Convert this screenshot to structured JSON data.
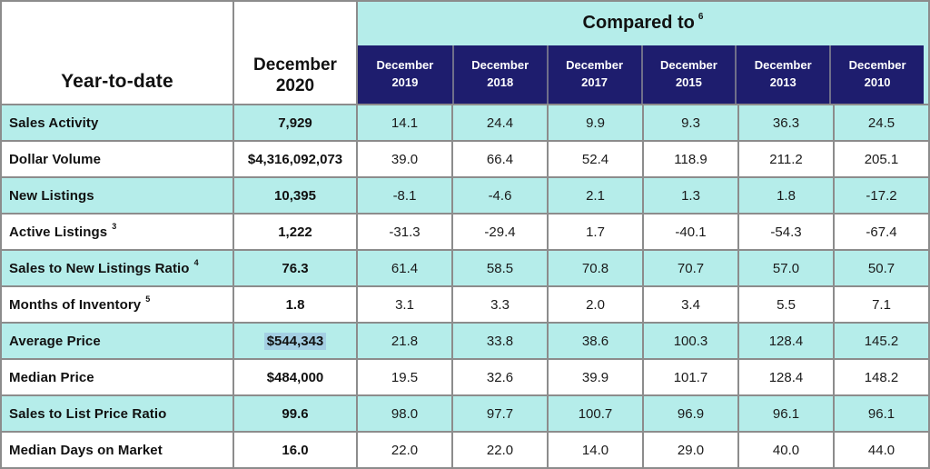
{
  "chart_data": {
    "type": "table",
    "corner_label": "Year-to-date",
    "current_period": "December 2020",
    "compared_to_label": "Compared to",
    "compared_to_footnote": "6",
    "comparison_columns": [
      "December 2019",
      "December 2018",
      "December 2017",
      "December 2015",
      "December 2013",
      "December 2010"
    ],
    "rows": [
      {
        "label": "Sales Activity",
        "footnote": "",
        "value": "7,929",
        "comparisons": [
          "14.1",
          "24.4",
          "9.9",
          "9.3",
          "36.3",
          "24.5"
        ]
      },
      {
        "label": "Dollar Volume",
        "footnote": "",
        "value": "$4,316,092,073",
        "comparisons": [
          "39.0",
          "66.4",
          "52.4",
          "118.9",
          "211.2",
          "205.1"
        ]
      },
      {
        "label": "New Listings",
        "footnote": "",
        "value": "10,395",
        "comparisons": [
          "-8.1",
          "-4.6",
          "2.1",
          "1.3",
          "1.8",
          "-17.2"
        ]
      },
      {
        "label": "Active Listings",
        "footnote": "3",
        "value": "1,222",
        "comparisons": [
          "-31.3",
          "-29.4",
          "1.7",
          "-40.1",
          "-54.3",
          "-67.4"
        ]
      },
      {
        "label": "Sales to New Listings Ratio",
        "footnote": "4",
        "value": "76.3",
        "comparisons": [
          "61.4",
          "58.5",
          "70.8",
          "70.7",
          "57.0",
          "50.7"
        ]
      },
      {
        "label": "Months of Inventory",
        "footnote": "5",
        "value": "1.8",
        "comparisons": [
          "3.1",
          "3.3",
          "2.0",
          "3.4",
          "5.5",
          "7.1"
        ]
      },
      {
        "label": "Average Price",
        "footnote": "",
        "value": "$544,343",
        "comparisons": [
          "21.8",
          "33.8",
          "38.6",
          "100.3",
          "128.4",
          "145.2"
        ]
      },
      {
        "label": "Median Price",
        "footnote": "",
        "value": "$484,000",
        "comparisons": [
          "19.5",
          "32.6",
          "39.9",
          "101.7",
          "128.4",
          "148.2"
        ]
      },
      {
        "label": "Sales to List Price Ratio",
        "footnote": "",
        "value": "99.6",
        "comparisons": [
          "98.0",
          "97.7",
          "100.7",
          "96.9",
          "96.1",
          "96.1"
        ]
      },
      {
        "label": "Median Days on Market",
        "footnote": "",
        "value": "16.0",
        "comparisons": [
          "22.0",
          "22.0",
          "14.0",
          "29.0",
          "40.0",
          "44.0"
        ]
      }
    ],
    "highlighted_value": "$544,343"
  },
  "colors": {
    "row_shading_cyan": "#B5EDEA",
    "header_navy": "#1E1D6E",
    "gridline_gray": "#8C8C8C",
    "selection_highlight": "#A4CFE3"
  }
}
